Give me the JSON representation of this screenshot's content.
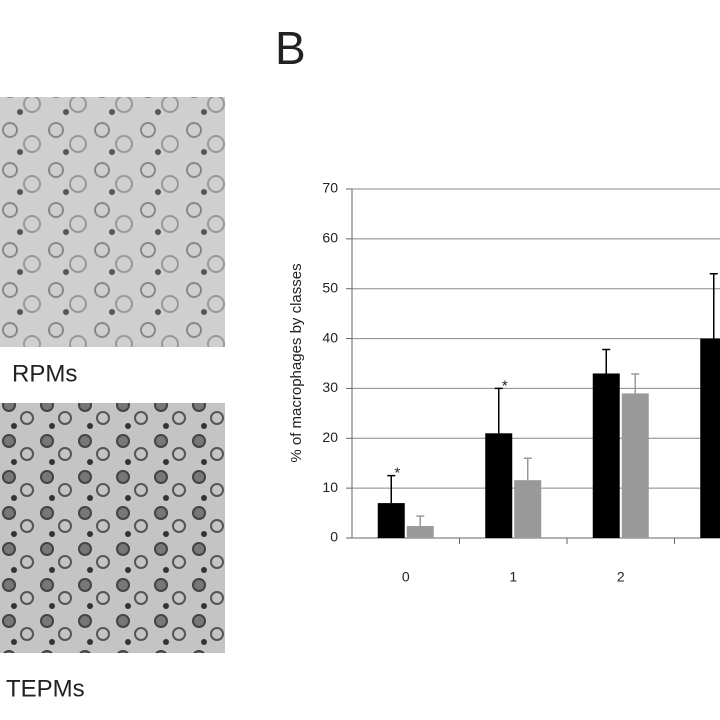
{
  "panel_label": "B",
  "images": [
    {
      "label": "RPMs"
    },
    {
      "label": "TEPMs"
    }
  ],
  "chart_data": {
    "type": "bar",
    "y_label": "% of macrophages by classes",
    "categories": [
      "0",
      "1",
      "2",
      null
    ],
    "series": [
      {
        "color": "#000000",
        "values": [
          7,
          21,
          33,
          40
        ],
        "errors": [
          5.5,
          9,
          4.8,
          13
        ]
      },
      {
        "color": "#999999",
        "values": [
          2.4,
          11.6,
          29,
          null
        ],
        "errors": [
          2,
          4.4,
          3.9,
          null
        ]
      }
    ],
    "annotations": [
      "*",
      "*"
    ],
    "ylim": [
      0,
      70
    ],
    "yticks": [
      0,
      10,
      20,
      30,
      40,
      50,
      60,
      70
    ],
    "grid": true
  }
}
